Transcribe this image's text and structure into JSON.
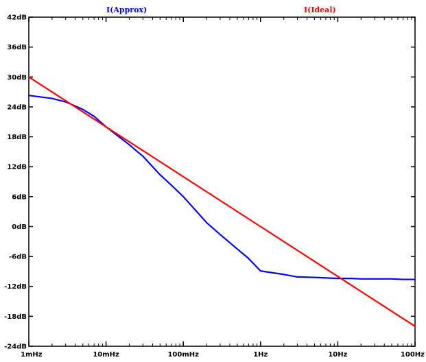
{
  "chart_data": {
    "type": "line",
    "x_scale": "log",
    "x_ticks": [
      "1mHz",
      "10mHz",
      "100mHz",
      "1Hz",
      "10Hz",
      "100Hz"
    ],
    "x_tick_values": [
      0.001,
      0.01,
      0.1,
      1,
      10,
      100
    ],
    "y_ticks": [
      "42dB",
      "36dB",
      "30dB",
      "24dB",
      "18dB",
      "12dB",
      "6dB",
      "0dB",
      "-6dB",
      "-12dB",
      "-18dB",
      "-24dB"
    ],
    "y_tick_values": [
      42,
      36,
      30,
      24,
      18,
      12,
      6,
      0,
      -6,
      -12,
      -18,
      -24
    ],
    "xlim": [
      0.001,
      100
    ],
    "ylim": [
      -24,
      42
    ],
    "grid": false,
    "series": [
      {
        "name": "I(Approx)",
        "color": "#0000ff",
        "x": [
          0.001,
          0.002,
          0.003,
          0.005,
          0.007,
          0.01,
          0.02,
          0.03,
          0.05,
          0.07,
          0.1,
          0.2,
          0.3,
          0.5,
          0.7,
          1,
          2,
          3,
          5,
          7,
          10,
          15,
          20,
          30,
          50,
          70,
          100
        ],
        "values": [
          26.3,
          25.7,
          25.0,
          23.5,
          22.1,
          20.0,
          16.4,
          14.1,
          10.4,
          8.3,
          6.0,
          0.8,
          -1.6,
          -4.5,
          -6.4,
          -8.9,
          -9.6,
          -10.1,
          -10.2,
          -10.3,
          -10.4,
          -10.4,
          -10.5,
          -10.5,
          -10.5,
          -10.6,
          -10.6
        ]
      },
      {
        "name": "I(Ideal)",
        "color": "#ff0000",
        "x": [
          0.001,
          100
        ],
        "values": [
          30.0,
          -20.0
        ]
      }
    ]
  }
}
